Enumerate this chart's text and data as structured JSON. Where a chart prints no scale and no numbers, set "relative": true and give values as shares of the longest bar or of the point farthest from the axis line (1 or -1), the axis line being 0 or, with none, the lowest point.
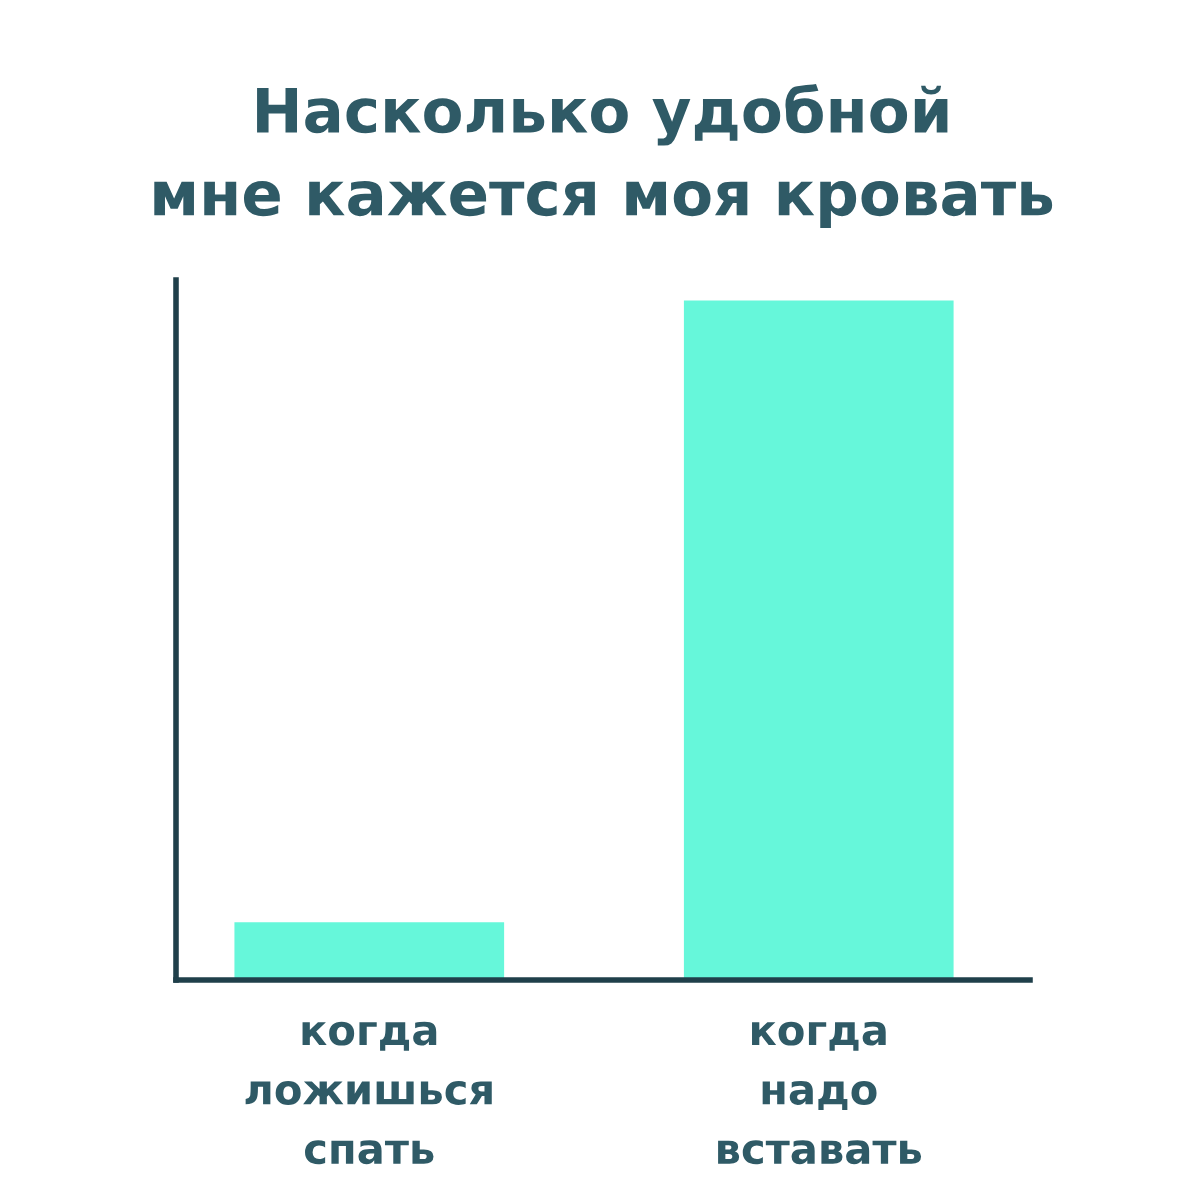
{
  "chart_data": {
    "type": "bar",
    "title": "Насколько удобной\nмне кажется моя кровать",
    "categories": [
      "когда\nложишься\nспать",
      "когда\nнадо\nвставать"
    ],
    "values": [
      0.085,
      1
    ],
    "color": "#66f7da",
    "relative": true,
    "grid": false,
    "legend": false
  }
}
